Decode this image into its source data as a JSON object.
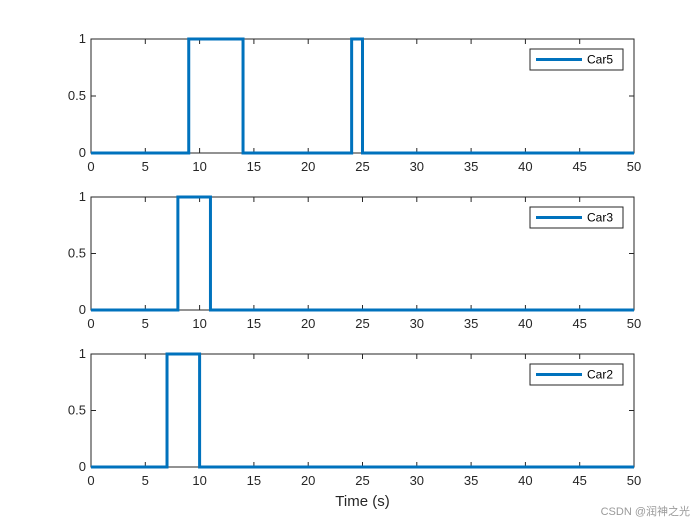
{
  "chart_data": [
    {
      "type": "line",
      "step": true,
      "xlim": [
        0,
        50
      ],
      "ylim": [
        0,
        1
      ],
      "xticks": [
        0,
        5,
        10,
        15,
        20,
        25,
        30,
        35,
        40,
        45,
        50
      ],
      "yticks": [
        0,
        0.5,
        1
      ],
      "xtick_labels": [
        "0",
        "5",
        "10",
        "15",
        "20",
        "25",
        "30",
        "35",
        "40",
        "45",
        "50"
      ],
      "ytick_labels": [
        "0",
        "0.5",
        "1"
      ],
      "xlabel": "",
      "legend_position": "top-right",
      "series": [
        {
          "name": "Car5",
          "x": [
            0,
            9,
            9,
            14,
            14,
            24,
            24,
            25,
            25,
            50
          ],
          "y": [
            0,
            0,
            1,
            1,
            0,
            0,
            1,
            1,
            0,
            0
          ]
        }
      ]
    },
    {
      "type": "line",
      "step": true,
      "xlim": [
        0,
        50
      ],
      "ylim": [
        0,
        1
      ],
      "xticks": [
        0,
        5,
        10,
        15,
        20,
        25,
        30,
        35,
        40,
        45,
        50
      ],
      "yticks": [
        0,
        0.5,
        1
      ],
      "xtick_labels": [
        "0",
        "5",
        "10",
        "15",
        "20",
        "25",
        "30",
        "35",
        "40",
        "45",
        "50"
      ],
      "ytick_labels": [
        "0",
        "0.5",
        "1"
      ],
      "xlabel": "",
      "legend_position": "top-right",
      "series": [
        {
          "name": "Car3",
          "x": [
            0,
            8,
            8,
            11,
            11,
            50
          ],
          "y": [
            0,
            0,
            1,
            1,
            0,
            0
          ]
        }
      ]
    },
    {
      "type": "line",
      "step": true,
      "xlim": [
        0,
        50
      ],
      "ylim": [
        0,
        1
      ],
      "xticks": [
        0,
        5,
        10,
        15,
        20,
        25,
        30,
        35,
        40,
        45,
        50
      ],
      "yticks": [
        0,
        0.5,
        1
      ],
      "xtick_labels": [
        "0",
        "5",
        "10",
        "15",
        "20",
        "25",
        "30",
        "35",
        "40",
        "45",
        "50"
      ],
      "ytick_labels": [
        "0",
        "0.5",
        "1"
      ],
      "xlabel": "Time (s)",
      "legend_position": "top-right",
      "series": [
        {
          "name": "Car2",
          "x": [
            0,
            7,
            7,
            10,
            10,
            50
          ],
          "y": [
            0,
            0,
            1,
            1,
            0,
            0
          ]
        }
      ]
    }
  ],
  "colors": {
    "series": "#0072BD",
    "axis": "#262626",
    "background": "#ffffff"
  },
  "watermark": "CSDN @润神之光"
}
